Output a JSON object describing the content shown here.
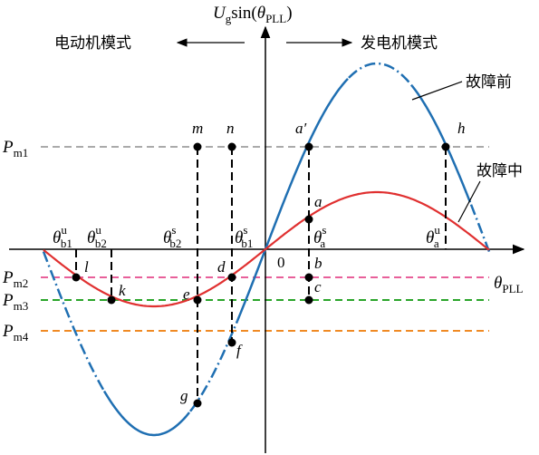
{
  "axis": {
    "y_label": {
      "symbol": "U",
      "sub": "g",
      "func": "sin(",
      "arg": "θ",
      "arg_sub": "PLL",
      "close": ")"
    },
    "x_label": {
      "symbol": "θ",
      "sub": "PLL"
    },
    "origin": "0"
  },
  "modes": {
    "left": "电动机模式",
    "right": "发电机模式"
  },
  "curves": {
    "before": "故障前",
    "during": "故障中"
  },
  "levels": [
    {
      "symbol": "P",
      "sub": "m1"
    },
    {
      "symbol": "P",
      "sub": "m2"
    },
    {
      "symbol": "P",
      "sub": "m3"
    },
    {
      "symbol": "P",
      "sub": "m4"
    }
  ],
  "angles": [
    {
      "symbol": "θ",
      "sup": "u",
      "sub": "b1"
    },
    {
      "symbol": "θ",
      "sup": "u",
      "sub": "b2"
    },
    {
      "symbol": "θ",
      "sup": "s",
      "sub": "b2"
    },
    {
      "symbol": "θ",
      "sup": "s",
      "sub": "b1"
    },
    {
      "symbol": "θ",
      "sup": "s",
      "sub": "a"
    },
    {
      "symbol": "θ",
      "sup": "u",
      "sub": "a"
    }
  ],
  "points": [
    "m",
    "n",
    "a′",
    "h",
    "a",
    "b",
    "c",
    "d",
    "e",
    "f",
    "g",
    "l",
    "k"
  ]
}
